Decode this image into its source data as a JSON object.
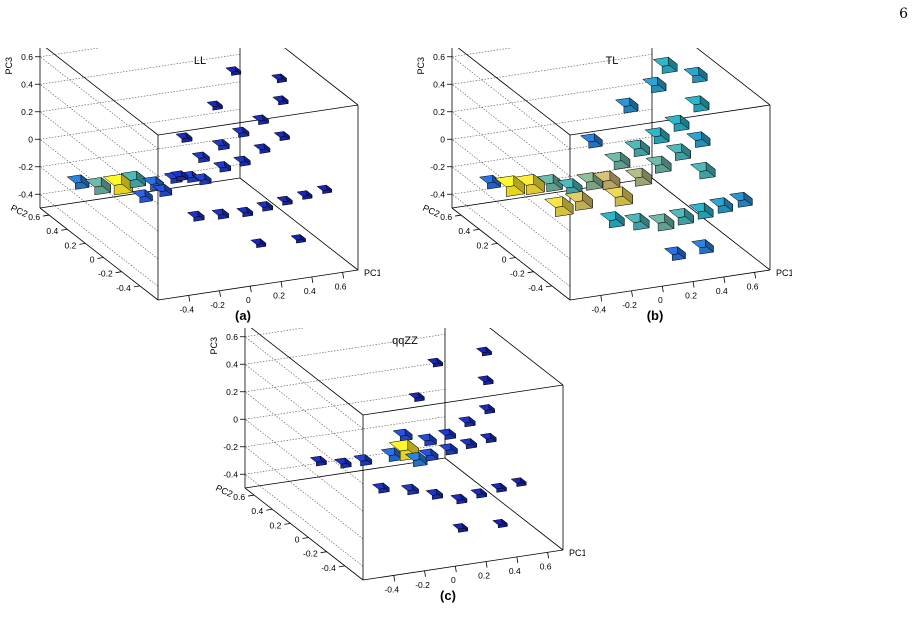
{
  "page_number": "6",
  "chart_data": [
    {
      "type": "lego3d",
      "title": "LL",
      "panel_label": "(a)",
      "xlabel": "PC1",
      "ylabel": "PC2",
      "zlabel": "PC3",
      "xlim": [
        -0.6,
        0.7
      ],
      "ylim": [
        -0.6,
        0.7
      ],
      "zlim": [
        -0.5,
        0.7
      ],
      "x_ticks": [
        "-0.4",
        "-0.2",
        "0",
        "0.2",
        "0.4",
        "0.6"
      ],
      "y_ticks": [
        "-0.4",
        "-0.2",
        "0",
        "0.2",
        "0.4",
        "0.6"
      ],
      "z_ticks": [
        "-0.4",
        "-0.2",
        "0",
        "0.2",
        "0.4",
        "0.6"
      ],
      "bins": [
        {
          "x": -0.5,
          "y": 0.45,
          "z": -0.2,
          "v": 0.35
        },
        {
          "x": -0.4,
          "y": 0.4,
          "z": -0.22,
          "v": 0.6
        },
        {
          "x": -0.3,
          "y": 0.35,
          "z": -0.2,
          "v": 1.0
        },
        {
          "x": -0.2,
          "y": 0.35,
          "z": -0.18,
          "v": 0.55
        },
        {
          "x": -0.1,
          "y": 0.3,
          "z": -0.2,
          "v": 0.3
        },
        {
          "x": -0.2,
          "y": 0.25,
          "z": -0.25,
          "v": 0.25
        },
        {
          "x": -0.1,
          "y": 0.2,
          "z": -0.2,
          "v": 0.2
        },
        {
          "x": 0.0,
          "y": 0.25,
          "z": -0.15,
          "v": 0.15
        },
        {
          "x": 0.05,
          "y": 0.15,
          "z": -0.1,
          "v": 0.15
        },
        {
          "x": 0.1,
          "y": 0.1,
          "z": -0.1,
          "v": 0.15
        },
        {
          "x": 0.15,
          "y": 0.2,
          "z": 0.0,
          "v": 0.12
        },
        {
          "x": 0.2,
          "y": 0.05,
          "z": 0.0,
          "v": 0.12
        },
        {
          "x": 0.25,
          "y": 0.15,
          "z": 0.1,
          "v": 0.12
        },
        {
          "x": 0.3,
          "y": 0.0,
          "z": 0.05,
          "v": 0.1
        },
        {
          "x": 0.35,
          "y": 0.1,
          "z": 0.2,
          "v": 0.1
        },
        {
          "x": 0.4,
          "y": -0.05,
          "z": 0.15,
          "v": 0.08
        },
        {
          "x": 0.45,
          "y": 0.05,
          "z": 0.3,
          "v": 0.08
        },
        {
          "x": 0.5,
          "y": -0.1,
          "z": 0.25,
          "v": 0.06
        },
        {
          "x": 0.55,
          "y": 0.0,
          "z": 0.45,
          "v": 0.06
        },
        {
          "x": 0.6,
          "y": 0.1,
          "z": 0.55,
          "v": 0.05
        },
        {
          "x": 0.0,
          "y": 0.0,
          "z": -0.3,
          "v": 0.1
        },
        {
          "x": 0.1,
          "y": -0.1,
          "z": -0.25,
          "v": 0.1
        },
        {
          "x": 0.2,
          "y": -0.2,
          "z": -0.2,
          "v": 0.08
        },
        {
          "x": 0.3,
          "y": -0.25,
          "z": -0.15,
          "v": 0.08
        },
        {
          "x": 0.4,
          "y": -0.3,
          "z": -0.1,
          "v": 0.06
        },
        {
          "x": 0.5,
          "y": -0.35,
          "z": -0.05,
          "v": 0.05
        },
        {
          "x": 0.6,
          "y": -0.4,
          "z": 0.0,
          "v": 0.04
        },
        {
          "x": -0.05,
          "y": 0.1,
          "z": -0.05,
          "v": 0.1
        },
        {
          "x": 0.1,
          "y": 0.3,
          "z": 0.1,
          "v": 0.08
        },
        {
          "x": 0.3,
          "y": 0.3,
          "z": 0.3,
          "v": 0.06
        },
        {
          "x": 0.45,
          "y": 0.35,
          "z": 0.5,
          "v": 0.05
        },
        {
          "x": 0.2,
          "y": -0.35,
          "z": -0.35,
          "v": 0.05
        },
        {
          "x": 0.4,
          "y": -0.45,
          "z": -0.3,
          "v": 0.04
        }
      ]
    },
    {
      "type": "lego3d",
      "title": "TL",
      "panel_label": "(b)",
      "xlabel": "PC1",
      "ylabel": "PC2",
      "zlabel": "PC3",
      "xlim": [
        -0.6,
        0.7
      ],
      "ylim": [
        -0.6,
        0.7
      ],
      "zlim": [
        -0.5,
        0.7
      ],
      "x_ticks": [
        "-0.4",
        "-0.2",
        "0",
        "0.2",
        "0.4",
        "0.6"
      ],
      "y_ticks": [
        "-0.4",
        "-0.2",
        "0",
        "0.2",
        "0.4",
        "0.6"
      ],
      "z_ticks": [
        "-0.4",
        "-0.2",
        "0",
        "0.2",
        "0.4",
        "0.6"
      ],
      "bins": [
        {
          "x": -0.5,
          "y": 0.45,
          "z": -0.2,
          "v": 0.3
        },
        {
          "x": -0.4,
          "y": 0.4,
          "z": -0.22,
          "v": 1.0
        },
        {
          "x": -0.3,
          "y": 0.35,
          "z": -0.2,
          "v": 0.95
        },
        {
          "x": -0.2,
          "y": 0.3,
          "z": -0.18,
          "v": 0.6
        },
        {
          "x": -0.1,
          "y": 0.25,
          "z": -0.2,
          "v": 0.55
        },
        {
          "x": -0.2,
          "y": 0.2,
          "z": -0.3,
          "v": 0.9
        },
        {
          "x": -0.1,
          "y": 0.15,
          "z": -0.25,
          "v": 0.8
        },
        {
          "x": 0.0,
          "y": 0.2,
          "z": -0.15,
          "v": 0.65
        },
        {
          "x": 0.05,
          "y": 0.1,
          "z": -0.1,
          "v": 0.75
        },
        {
          "x": 0.1,
          "y": 0.05,
          "z": -0.2,
          "v": 0.85
        },
        {
          "x": 0.15,
          "y": 0.15,
          "z": 0.0,
          "v": 0.6
        },
        {
          "x": 0.2,
          "y": 0.0,
          "z": -0.05,
          "v": 0.7
        },
        {
          "x": 0.25,
          "y": 0.1,
          "z": 0.1,
          "v": 0.55
        },
        {
          "x": 0.3,
          "y": -0.05,
          "z": 0.05,
          "v": 0.6
        },
        {
          "x": 0.35,
          "y": 0.05,
          "z": 0.2,
          "v": 0.5
        },
        {
          "x": 0.4,
          "y": -0.1,
          "z": 0.15,
          "v": 0.55
        },
        {
          "x": 0.45,
          "y": 0.0,
          "z": 0.3,
          "v": 0.5
        },
        {
          "x": 0.5,
          "y": -0.15,
          "z": 0.25,
          "v": 0.45
        },
        {
          "x": 0.55,
          "y": -0.05,
          "z": 0.45,
          "v": 0.5
        },
        {
          "x": 0.6,
          "y": 0.05,
          "z": 0.6,
          "v": 0.45
        },
        {
          "x": 0.0,
          "y": -0.05,
          "z": -0.3,
          "v": 0.5
        },
        {
          "x": 0.1,
          "y": -0.15,
          "z": -0.28,
          "v": 0.55
        },
        {
          "x": 0.2,
          "y": -0.25,
          "z": -0.25,
          "v": 0.6
        },
        {
          "x": 0.3,
          "y": -0.3,
          "z": -0.2,
          "v": 0.55
        },
        {
          "x": 0.4,
          "y": -0.35,
          "z": -0.15,
          "v": 0.5
        },
        {
          "x": 0.5,
          "y": -0.4,
          "z": -0.1,
          "v": 0.45
        },
        {
          "x": 0.6,
          "y": -0.45,
          "z": -0.05,
          "v": 0.4
        },
        {
          "x": 0.35,
          "y": -0.45,
          "z": -0.35,
          "v": 0.35
        },
        {
          "x": 0.2,
          "y": -0.4,
          "z": -0.4,
          "v": 0.3
        },
        {
          "x": 0.5,
          "y": -0.2,
          "z": 0.05,
          "v": 0.55
        },
        {
          "x": 0.45,
          "y": 0.25,
          "z": 0.45,
          "v": 0.45
        },
        {
          "x": 0.55,
          "y": 0.3,
          "z": 0.55,
          "v": 0.5
        },
        {
          "x": 0.3,
          "y": 0.3,
          "z": 0.3,
          "v": 0.4
        },
        {
          "x": 0.1,
          "y": 0.35,
          "z": 0.05,
          "v": 0.35
        }
      ]
    },
    {
      "type": "lego3d",
      "title": "qqZZ",
      "panel_label": "(c)",
      "xlabel": "PC1",
      "ylabel": "PC2",
      "zlabel": "PC3",
      "xlim": [
        -0.6,
        0.7
      ],
      "ylim": [
        -0.6,
        0.7
      ],
      "zlim": [
        -0.5,
        0.7
      ],
      "x_ticks": [
        "-0.4",
        "-0.2",
        "0",
        "0.2",
        "0.4",
        "0.6"
      ],
      "y_ticks": [
        "-0.4",
        "-0.2",
        "0",
        "0.2",
        "0.4",
        "0.6"
      ],
      "z_ticks": [
        "-0.4",
        "-0.2",
        "0",
        "0.2",
        "0.4",
        "0.6"
      ],
      "bins": [
        {
          "x": -0.3,
          "y": 0.4,
          "z": -0.2,
          "v": 0.08
        },
        {
          "x": -0.2,
          "y": 0.3,
          "z": -0.18,
          "v": 0.1
        },
        {
          "x": -0.1,
          "y": 0.25,
          "z": -0.15,
          "v": 0.15
        },
        {
          "x": 0.0,
          "y": 0.1,
          "z": -0.05,
          "v": 0.3
        },
        {
          "x": 0.05,
          "y": 0.05,
          "z": 0.0,
          "v": 1.0
        },
        {
          "x": 0.1,
          "y": 0.0,
          "z": -0.05,
          "v": 0.35
        },
        {
          "x": 0.1,
          "y": 0.15,
          "z": 0.05,
          "v": 0.2
        },
        {
          "x": 0.15,
          "y": -0.05,
          "z": 0.0,
          "v": 0.2
        },
        {
          "x": 0.2,
          "y": 0.05,
          "z": 0.05,
          "v": 0.18
        },
        {
          "x": 0.25,
          "y": -0.1,
          "z": 0.05,
          "v": 0.15
        },
        {
          "x": 0.3,
          "y": 0.0,
          "z": 0.1,
          "v": 0.12
        },
        {
          "x": 0.35,
          "y": -0.15,
          "z": 0.1,
          "v": 0.1
        },
        {
          "x": 0.4,
          "y": -0.05,
          "z": 0.2,
          "v": 0.1
        },
        {
          "x": 0.45,
          "y": -0.2,
          "z": 0.15,
          "v": 0.08
        },
        {
          "x": 0.5,
          "y": -0.1,
          "z": 0.3,
          "v": 0.07
        },
        {
          "x": 0.55,
          "y": 0.0,
          "z": 0.45,
          "v": 0.06
        },
        {
          "x": 0.6,
          "y": 0.1,
          "z": 0.6,
          "v": 0.05
        },
        {
          "x": 0.0,
          "y": -0.1,
          "z": -0.2,
          "v": 0.12
        },
        {
          "x": 0.1,
          "y": -0.2,
          "z": -0.2,
          "v": 0.1
        },
        {
          "x": 0.2,
          "y": -0.3,
          "z": -0.2,
          "v": 0.08
        },
        {
          "x": 0.3,
          "y": -0.35,
          "z": -0.15,
          "v": 0.07
        },
        {
          "x": 0.4,
          "y": -0.4,
          "z": -0.1,
          "v": 0.06
        },
        {
          "x": 0.5,
          "y": -0.45,
          "z": -0.05,
          "v": 0.05
        },
        {
          "x": -0.1,
          "y": 0.05,
          "z": -0.25,
          "v": 0.1
        },
        {
          "x": 0.25,
          "y": 0.25,
          "z": 0.25,
          "v": 0.06
        },
        {
          "x": 0.4,
          "y": 0.3,
          "z": 0.45,
          "v": 0.05
        },
        {
          "x": 0.15,
          "y": -0.4,
          "z": -0.35,
          "v": 0.05
        },
        {
          "x": 0.35,
          "y": -0.5,
          "z": -0.3,
          "v": 0.04
        }
      ]
    }
  ]
}
